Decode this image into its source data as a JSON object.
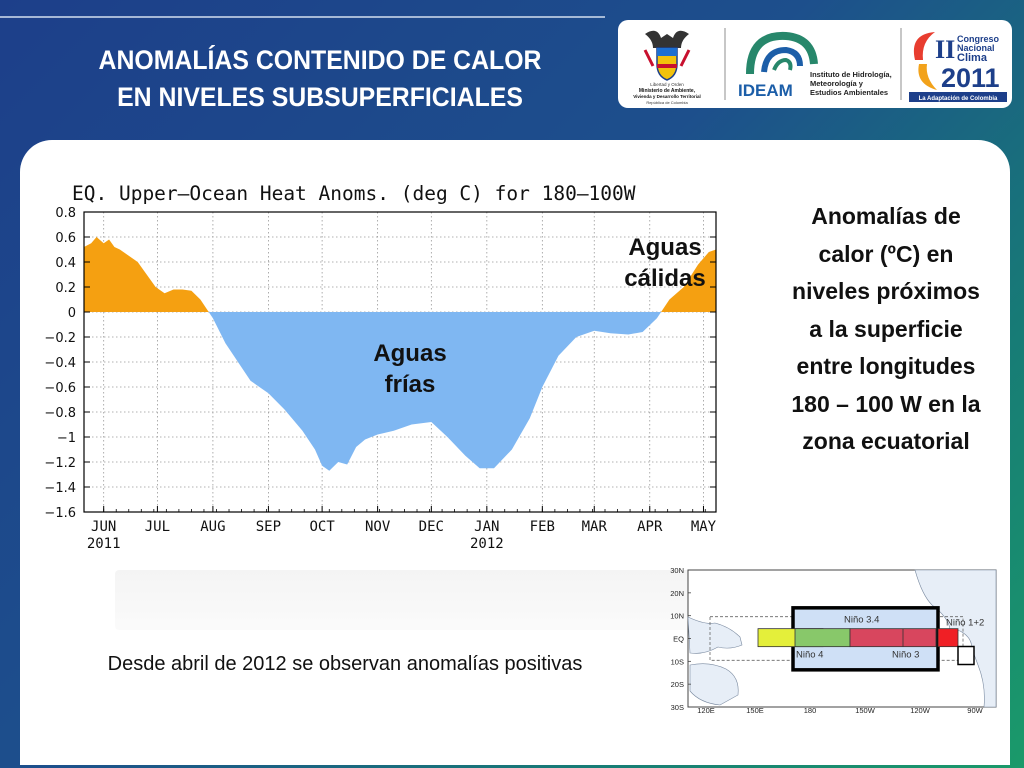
{
  "slide": {
    "title_line1": "ANOMALÍAS CONTENIDO DE CALOR",
    "title_line2": "EN NIVELES SUBSUPERFICIALES",
    "side_text": [
      "Anomalías de",
      "calor (ºC) en",
      "niveles próximos",
      "a la superficie",
      "entre longitudes",
      "180 – 100 W en la",
      "zona ecuatorial"
    ],
    "caption": "Desde abril de 2012 se observan anomalías positivas",
    "label_warm": [
      "Aguas",
      "cálidas"
    ],
    "label_cold": [
      "Aguas",
      "frías"
    ]
  },
  "logos": {
    "logo1": [
      "Libertad y Orden",
      "Ministerio de Ambiente,",
      "Vivienda y Desarrollo Territorial",
      "República de Colombia"
    ],
    "ideam_name": "IDEAM",
    "ideam_text": [
      "Instituto de Hidrología,",
      "Meteorología y",
      "Estudios Ambientales"
    ],
    "congreso_roman": "II",
    "congreso_text": [
      "Congreso",
      "Nacional",
      "Clima"
    ],
    "congreso_year": "2011",
    "congreso_tag": "La Adaptación de Colombia"
  },
  "colors": {
    "warm": "#f5a011",
    "cold": "#7fb7f2",
    "ideam_blue": "#1c5ea8",
    "ideam_green": "#27876b"
  },
  "chart_data": {
    "type": "area",
    "title": "EQ. Upper–Ocean Heat Anoms. (deg C) for 180–100W",
    "ylim": [
      -1.6,
      0.8
    ],
    "yticks": [
      "0.8",
      "0.6",
      "0.4",
      "0.2",
      "0",
      "−0.2",
      "−0.4",
      "−0.6",
      "−0.8",
      "−1",
      "−1.2",
      "−1.4",
      "−1.6"
    ],
    "ytick_values": [
      0.8,
      0.6,
      0.4,
      0.2,
      0,
      -0.2,
      -0.4,
      -0.6,
      -0.8,
      -1,
      -1.2,
      -1.4,
      -1.6
    ],
    "xlim": [
      "2011-05-21",
      "2012-05-08"
    ],
    "xticks": [
      {
        "date": "2011-06-01",
        "label": "JUN",
        "sub": "2011"
      },
      {
        "date": "2011-07-01",
        "label": "JUL"
      },
      {
        "date": "2011-08-01",
        "label": "AUG"
      },
      {
        "date": "2011-09-01",
        "label": "SEP"
      },
      {
        "date": "2011-10-01",
        "label": "OCT"
      },
      {
        "date": "2011-11-01",
        "label": "NOV"
      },
      {
        "date": "2011-12-01",
        "label": "DEC"
      },
      {
        "date": "2012-01-01",
        "label": "JAN",
        "sub": "2012"
      },
      {
        "date": "2012-02-01",
        "label": "FEB"
      },
      {
        "date": "2012-03-01",
        "label": "MAR"
      },
      {
        "date": "2012-04-01",
        "label": "APR"
      },
      {
        "date": "2012-05-01",
        "label": "MAY"
      }
    ],
    "grid": true,
    "series": [
      {
        "x": [
          "2011-05-21",
          "2011-05-25",
          "2011-05-28",
          "2011-06-01",
          "2011-06-04",
          "2011-06-07",
          "2011-06-10",
          "2011-06-15",
          "2011-06-20",
          "2011-06-25",
          "2011-06-30",
          "2011-07-05",
          "2011-07-10",
          "2011-07-15",
          "2011-07-20",
          "2011-07-25",
          "2011-08-01",
          "2011-08-08",
          "2011-08-15",
          "2011-08-22",
          "2011-09-01",
          "2011-09-10",
          "2011-09-20",
          "2011-09-27",
          "2011-10-01",
          "2011-10-05",
          "2011-10-10",
          "2011-10-15",
          "2011-10-20",
          "2011-10-25",
          "2011-11-01",
          "2011-11-10",
          "2011-11-20",
          "2011-12-01",
          "2011-12-10",
          "2011-12-20",
          "2011-12-28",
          "2012-01-05",
          "2012-01-15",
          "2012-01-25",
          "2012-02-01",
          "2012-02-10",
          "2012-02-20",
          "2012-03-01",
          "2012-03-10",
          "2012-03-20",
          "2012-03-28",
          "2012-04-05",
          "2012-04-12",
          "2012-04-20",
          "2012-04-28",
          "2012-05-04",
          "2012-05-08"
        ],
        "y": [
          0.52,
          0.55,
          0.6,
          0.55,
          0.58,
          0.52,
          0.5,
          0.45,
          0.4,
          0.3,
          0.2,
          0.15,
          0.18,
          0.18,
          0.17,
          0.1,
          -0.05,
          -0.25,
          -0.4,
          -0.55,
          -0.65,
          -0.78,
          -0.95,
          -1.1,
          -1.23,
          -1.27,
          -1.2,
          -1.22,
          -1.08,
          -1.02,
          -0.98,
          -0.95,
          -0.9,
          -0.88,
          -1.0,
          -1.15,
          -1.25,
          -1.25,
          -1.1,
          -0.85,
          -0.6,
          -0.35,
          -0.2,
          -0.15,
          -0.17,
          -0.18,
          -0.16,
          -0.05,
          0.1,
          0.2,
          0.38,
          0.48,
          0.5
        ]
      }
    ]
  },
  "map_data": {
    "lat_labels": [
      "30N",
      "20N",
      "10N",
      "EQ",
      "10S",
      "20S",
      "30S"
    ],
    "lon_labels": [
      "120E",
      "150E",
      "180",
      "150W",
      "120W",
      "90W"
    ],
    "regions": [
      "Niño 3.4",
      "Niño 4",
      "Niño 3",
      "Niño 1+2"
    ],
    "region_colors": {
      "nino4": "#e4ef3a",
      "nino34": "#88c86a",
      "nino3": "#d8465e",
      "nino12": "#f01f25",
      "box": "#cfe0f6"
    }
  }
}
